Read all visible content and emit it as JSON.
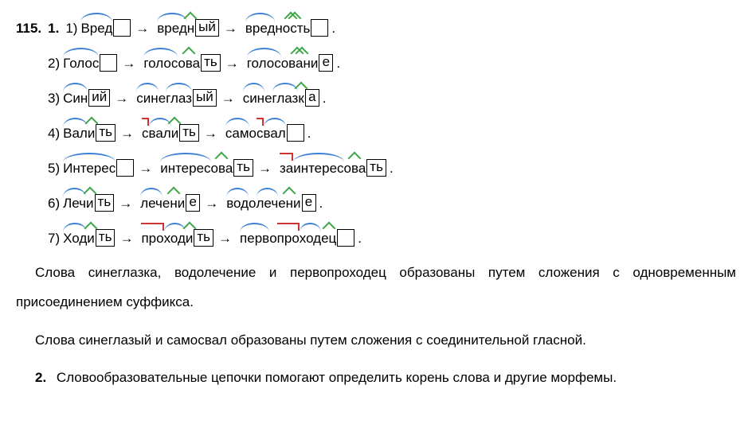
{
  "exercise_number": "115.",
  "part1_number": "1.",
  "part2_number": "2.",
  "arrow": "→",
  "lines": [
    {
      "n": "1)",
      "words": [
        {
          "segs": [
            {
              "t": "Вред",
              "c": "root"
            }
          ],
          "end": ""
        },
        {
          "segs": [
            {
              "t": "вред",
              "c": "root"
            },
            {
              "t": "н",
              "c": "suffix"
            }
          ],
          "end": "ый"
        },
        {
          "segs": [
            {
              "t": "вред",
              "c": "root"
            },
            {
              "t": "ность",
              "c": "suffix-wide"
            }
          ],
          "end": ""
        }
      ]
    },
    {
      "n": "2)",
      "words": [
        {
          "segs": [
            {
              "t": "Голос",
              "c": "root"
            }
          ],
          "end": ""
        },
        {
          "segs": [
            {
              "t": "голос",
              "c": "root"
            },
            {
              "t": "ова",
              "c": "suffix"
            }
          ],
          "end": "ть"
        },
        {
          "segs": [
            {
              "t": "голос",
              "c": "root"
            },
            {
              "t": "овани",
              "c": "suffix-wide"
            }
          ],
          "end": "е"
        }
      ]
    },
    {
      "n": "3)",
      "words": [
        {
          "segs": [
            {
              "t": "Син",
              "c": "root"
            }
          ],
          "end": "ий"
        },
        {
          "segs": [
            {
              "t": "син",
              "c": "root"
            },
            {
              "t": "е",
              "c": ""
            },
            {
              "t": "глаз",
              "c": "root"
            }
          ],
          "end": "ый"
        },
        {
          "segs": [
            {
              "t": "син",
              "c": "root"
            },
            {
              "t": "е",
              "c": ""
            },
            {
              "t": "глаз",
              "c": "root"
            },
            {
              "t": "к",
              "c": "suffix"
            }
          ],
          "end": "а"
        }
      ]
    },
    {
      "n": "4)",
      "words": [
        {
          "segs": [
            {
              "t": "Вал",
              "c": "root"
            },
            {
              "t": "и",
              "c": "suffix"
            }
          ],
          "end": "ть"
        },
        {
          "segs": [
            {
              "t": "с",
              "c": "prefix"
            },
            {
              "t": "вал",
              "c": "root"
            },
            {
              "t": "и",
              "c": "suffix"
            }
          ],
          "end": "ть"
        },
        {
          "segs": [
            {
              "t": "сам",
              "c": "root"
            },
            {
              "t": "о",
              "c": ""
            },
            {
              "t": "с",
              "c": "prefix"
            },
            {
              "t": "вал",
              "c": "root"
            }
          ],
          "end": ""
        }
      ]
    },
    {
      "n": "5)",
      "words": [
        {
          "segs": [
            {
              "t": "Интерес",
              "c": "root"
            }
          ],
          "end": ""
        },
        {
          "segs": [
            {
              "t": "интерес",
              "c": "root"
            },
            {
              "t": "ова",
              "c": "suffix"
            }
          ],
          "end": "ть"
        },
        {
          "segs": [
            {
              "t": "за",
              "c": "prefix"
            },
            {
              "t": "интерес",
              "c": "root"
            },
            {
              "t": "ова",
              "c": "suffix"
            }
          ],
          "end": "ть"
        }
      ]
    },
    {
      "n": "6)",
      "words": [
        {
          "segs": [
            {
              "t": "Леч",
              "c": "root"
            },
            {
              "t": "и",
              "c": "suffix"
            }
          ],
          "end": "ть"
        },
        {
          "segs": [
            {
              "t": "леч",
              "c": "root"
            },
            {
              "t": "ени",
              "c": "suffix"
            }
          ],
          "end": "е"
        },
        {
          "segs": [
            {
              "t": "вод",
              "c": "root"
            },
            {
              "t": "о",
              "c": ""
            },
            {
              "t": "леч",
              "c": "root"
            },
            {
              "t": "ени",
              "c": "suffix"
            }
          ],
          "end": "е"
        }
      ]
    },
    {
      "n": "7)",
      "words": [
        {
          "segs": [
            {
              "t": "Ход",
              "c": "root"
            },
            {
              "t": "и",
              "c": "suffix"
            }
          ],
          "end": "ть"
        },
        {
          "segs": [
            {
              "t": "про",
              "c": "prefix"
            },
            {
              "t": "ход",
              "c": "root"
            },
            {
              "t": "и",
              "c": "suffix"
            }
          ],
          "end": "ть"
        },
        {
          "segs": [
            {
              "t": "перв",
              "c": "root"
            },
            {
              "t": "о",
              "c": ""
            },
            {
              "t": "про",
              "c": "prefix"
            },
            {
              "t": "ход",
              "c": "root"
            },
            {
              "t": "ец",
              "c": "suffix"
            }
          ],
          "end": ""
        }
      ]
    }
  ],
  "paragraphs": {
    "p1": "Слова синеглазка, водолечение и первопроходец образованы путем сложения с одновременным присоединением суффикса.",
    "p2": "Слова синеглазый и самосвал образованы путем сложения с соединительной гласной.",
    "p3": "Словообразовательные цепочки помогают определить корень слова и другие морфемы."
  }
}
